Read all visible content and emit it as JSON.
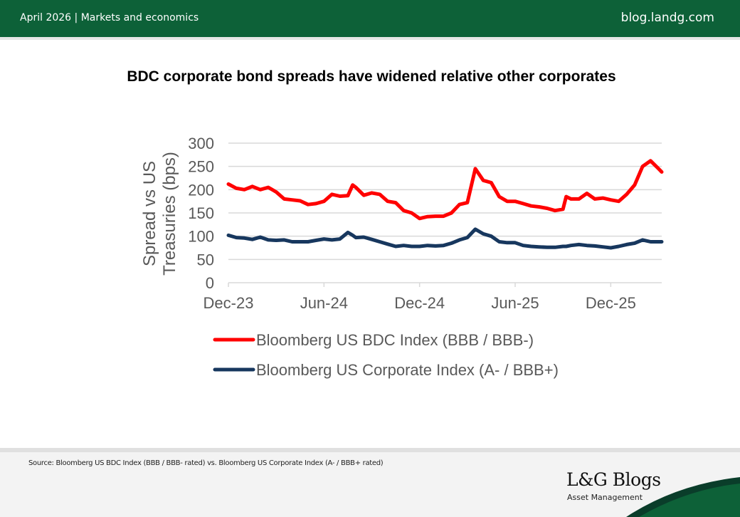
{
  "header": {
    "left": "April 2026 | Markets and economics",
    "right": "blog.landg.com"
  },
  "title": "BDC corporate bond spreads have widened relative other corporates",
  "footer": {
    "source": "Source: Bloomberg US BDC Index (BBB / BBB- rated) vs. Bloomberg US Corporate Index (A- / BBB+ rated)",
    "logo": "L&G Blogs",
    "logo_sub": "Asset Management"
  },
  "colors": {
    "header": "#0d6138",
    "bdc": "#ff0000",
    "corp": "#17375e"
  },
  "chart_data": {
    "type": "line",
    "title": "BDC corporate bond spreads have widened relative other corporates",
    "ylabel": "Spread vs US Treasuries (bps)",
    "ylabel_lines": [
      "Spread vs US",
      "Treasuries (bps)"
    ],
    "xlabel": "",
    "x_unit": "months since Dec-23",
    "ylim": [
      0,
      300
    ],
    "yticks": [
      "0",
      "50",
      "100",
      "150",
      "200",
      "250",
      "300"
    ],
    "xlim": [
      0,
      27.2
    ],
    "xticks": [
      {
        "at": 0,
        "label": "Dec-23"
      },
      {
        "at": 6,
        "label": "Jun-24"
      },
      {
        "at": 12,
        "label": "Dec-24"
      },
      {
        "at": 18,
        "label": "Jun-25"
      },
      {
        "at": 24,
        "label": "Dec-25"
      }
    ],
    "grid": true,
    "legend": "bottom",
    "x": [
      0,
      0.5,
      1,
      1.5,
      2,
      2.5,
      3,
      3.5,
      4,
      4.5,
      5,
      5.5,
      6,
      6.5,
      7,
      7.5,
      7.8,
      8,
      8.5,
      9,
      9.5,
      10,
      10.5,
      11,
      11.5,
      12,
      12.5,
      13,
      13.5,
      14,
      14.5,
      15,
      15.5,
      16,
      16.5,
      17,
      17.5,
      18,
      18.5,
      19,
      19.5,
      20,
      20.5,
      21,
      21.2,
      21.5,
      22,
      22.5,
      23,
      23.5,
      24,
      24.5,
      25,
      25.5,
      26,
      26.5,
      27,
      27.2
    ],
    "series": [
      {
        "name": "Bloomberg US BDC Index (BBB / BBB-)",
        "values": [
          212,
          203,
          200,
          207,
          200,
          205,
          195,
          180,
          178,
          176,
          168,
          170,
          175,
          190,
          186,
          187,
          210,
          205,
          188,
          193,
          190,
          175,
          172,
          155,
          150,
          138,
          142,
          143,
          143,
          150,
          168,
          172,
          245,
          220,
          215,
          185,
          175,
          175,
          170,
          165,
          163,
          160,
          155,
          158,
          185,
          180,
          180,
          192,
          180,
          182,
          178,
          175,
          190,
          210,
          250,
          262,
          245,
          238
        ]
      },
      {
        "name": "Bloomberg US Corporate Index (A- / BBB+)",
        "values": [
          102,
          97,
          96,
          93,
          98,
          92,
          91,
          92,
          88,
          88,
          88,
          91,
          94,
          92,
          94,
          108,
          102,
          97,
          98,
          93,
          88,
          83,
          78,
          80,
          78,
          78,
          80,
          79,
          80,
          85,
          92,
          97,
          115,
          105,
          100,
          88,
          86,
          86,
          80,
          78,
          77,
          76,
          76,
          78,
          78,
          80,
          82,
          80,
          79,
          77,
          75,
          78,
          82,
          85,
          92,
          88,
          88,
          88
        ]
      }
    ]
  }
}
